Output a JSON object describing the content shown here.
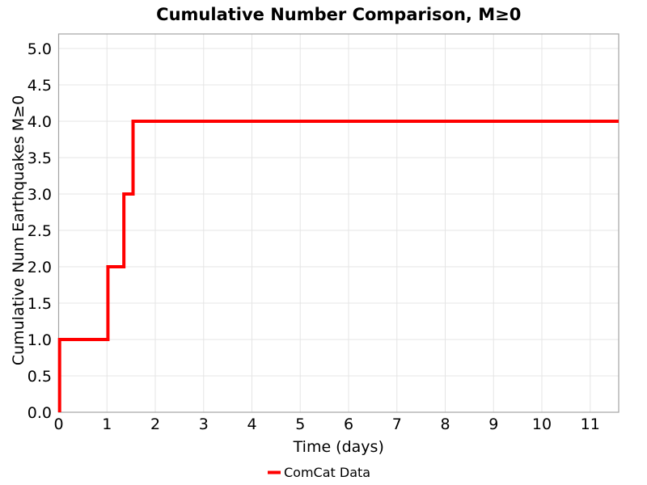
{
  "chart_data": {
    "type": "line",
    "subtype": "step-post",
    "title": "Cumulative Number Comparison, M≥0",
    "xlabel": "Time (days)",
    "ylabel": "Cumulative Num Earthquakes M≥0",
    "xlim": [
      0,
      11.59
    ],
    "ylim": [
      0,
      5.2
    ],
    "xticks": [
      0,
      1,
      2,
      3,
      4,
      5,
      6,
      7,
      8,
      9,
      10,
      11
    ],
    "xtick_labels": [
      "0",
      "1",
      "2",
      "3",
      "4",
      "5",
      "6",
      "7",
      "8",
      "9",
      "10",
      "11"
    ],
    "yticks": [
      0,
      0.5,
      1,
      1.5,
      2,
      2.5,
      3,
      3.5,
      4,
      4.5,
      5
    ],
    "ytick_labels": [
      "0.0",
      "0.5",
      "1.0",
      "1.5",
      "2.0",
      "2.5",
      "3.0",
      "3.5",
      "4.0",
      "4.5",
      "5.0"
    ],
    "grid": true,
    "legend": {
      "position": "below-center",
      "entries": [
        {
          "label": "ComCat Data",
          "color": "#ff0000"
        }
      ]
    },
    "series": [
      {
        "name": "ComCat Data",
        "color": "#ff0000",
        "line_width": 4,
        "step_mode": "post",
        "start": {
          "x": 0.02,
          "y": 0
        },
        "event_times_days": [
          0.02,
          1.02,
          1.35,
          1.54
        ],
        "cumulative_counts": [
          1,
          2,
          3,
          4
        ],
        "end_x": 11.59
      }
    ],
    "colors": {
      "grid": "#e5e5e5",
      "spine": "#a3a3a3",
      "text": "#000000",
      "background": "#ffffff"
    }
  }
}
